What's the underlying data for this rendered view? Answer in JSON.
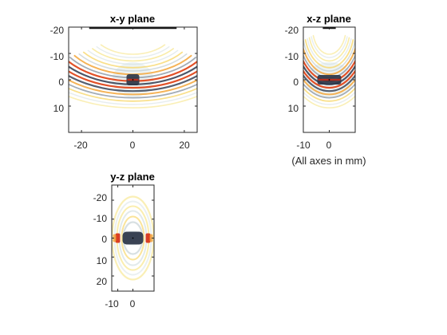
{
  "chart_data": [
    {
      "type": "heatmap",
      "title": "x-y plane",
      "xlabel": "",
      "ylabel": "",
      "xlim": [
        -25,
        25
      ],
      "ylim": [
        -20,
        20
      ],
      "y_reversed": true,
      "xticks": [
        -20,
        0,
        20
      ],
      "yticks": [
        -20,
        -10,
        0,
        10
      ],
      "xtick_labels": [
        "-20",
        "0",
        "20"
      ],
      "ytick_labels": [
        "-20",
        "-10",
        "0",
        "10"
      ],
      "grid": false,
      "colormap": "diverging (blue-grey / white / yellow / red)",
      "field": "arcs",
      "transducer_aperture": [
        -17,
        17
      ]
    },
    {
      "type": "heatmap",
      "title": "x-z plane",
      "xlabel": "",
      "ylabel": "",
      "xlim": [
        -10,
        10
      ],
      "ylim": [
        -20,
        20
      ],
      "y_reversed": true,
      "xticks": [
        -10,
        0
      ],
      "yticks": [
        -20,
        -10,
        0,
        10
      ],
      "xtick_labels": [
        "-10",
        "0"
      ],
      "ytick_labels": [
        "-20",
        "-10",
        "0",
        "10"
      ],
      "grid": false,
      "colormap": "diverging (blue-grey / white / yellow / red)",
      "field": "arcs",
      "transducer_aperture": [
        -2.5,
        2.5
      ]
    },
    {
      "type": "heatmap",
      "title": "y-z plane",
      "xlabel": "",
      "ylabel": "",
      "xlim": [
        -14,
        14
      ],
      "ylim": [
        -28,
        28
      ],
      "y_reversed": true,
      "xticks": [
        -10,
        0
      ],
      "yticks": [
        -20,
        -10,
        0,
        10,
        20
      ],
      "xtick_labels": [
        "-10",
        "0"
      ],
      "ytick_labels": [
        "-20",
        "-10",
        "0",
        "10",
        "20"
      ],
      "grid": false,
      "colormap": "diverging (blue-grey / white / yellow / red)",
      "field": "rings"
    }
  ],
  "annotation": "(All axes in mm)",
  "colors": {
    "axis": "#262626",
    "dark": "#2c3648",
    "red": "#d62a10",
    "orange": "#f39c30",
    "yellow": "#fbe85a",
    "pale": "#e6eeee"
  }
}
